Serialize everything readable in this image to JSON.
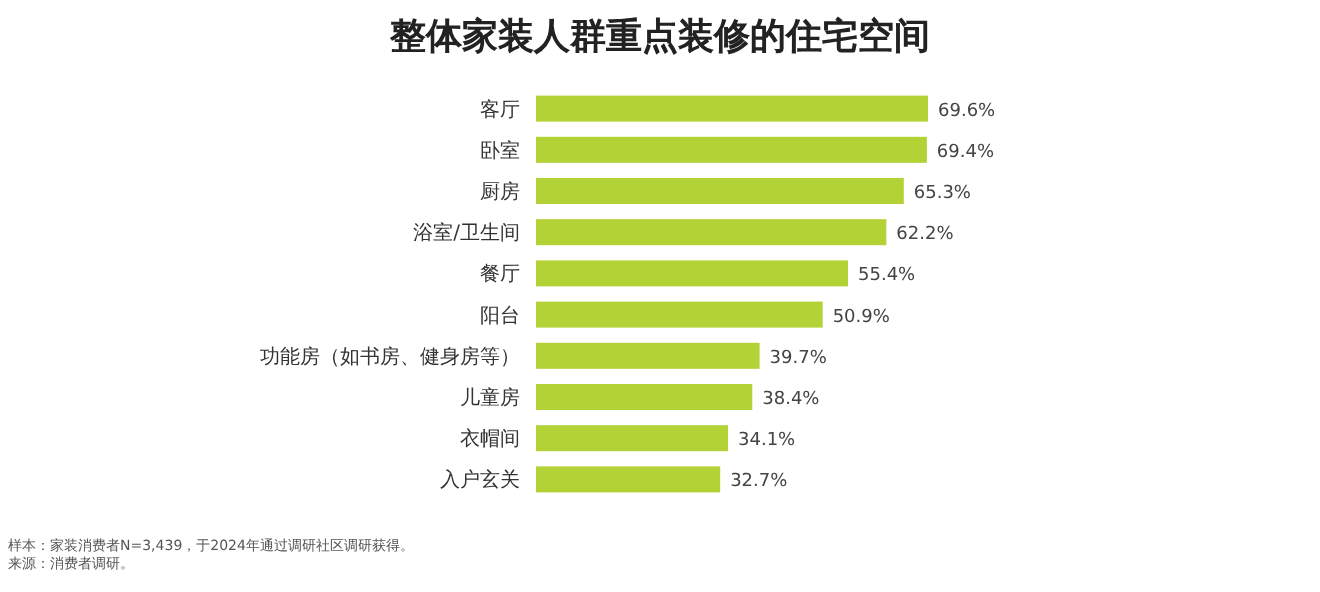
{
  "chart_data": {
    "type": "bar",
    "orientation": "horizontal",
    "title": "整体家装人群重点装修的住宅空间",
    "categories": [
      "客厅",
      "卧室",
      "厨房",
      "浴室/卫生间",
      "餐厅",
      "阳台",
      "功能房（如书房、健身房等）",
      "儿童房",
      "衣帽间",
      "入户玄关"
    ],
    "values": [
      69.6,
      69.4,
      65.3,
      62.2,
      55.4,
      50.9,
      39.7,
      38.4,
      34.1,
      32.7
    ],
    "value_labels": [
      "69.6%",
      "69.4%",
      "65.3%",
      "62.2%",
      "55.4%",
      "50.9%",
      "39.7%",
      "38.4%",
      "34.1%",
      "32.7%"
    ],
    "color": "#b2d235",
    "annotations": [
      "样本：家装消费者N=3,439，于2024年通过调研社区调研获得。",
      "来源：消费者调研。"
    ]
  }
}
